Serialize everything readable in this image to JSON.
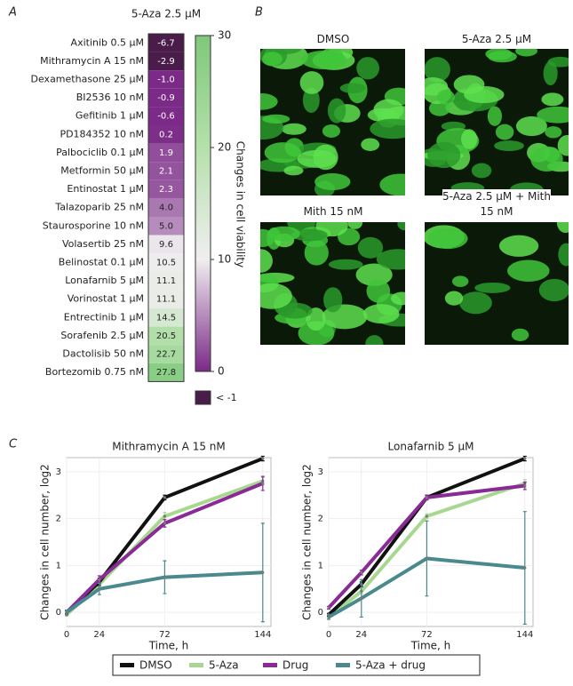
{
  "panel_labels": [
    "A",
    "B",
    "C"
  ],
  "images": {
    "titles": [
      "DMSO",
      "5-Aza 2.5 μM",
      "Mith 15 nM",
      "5-Aza 2.5 μM + Mith 15 nM"
    ]
  },
  "chart_data": [
    {
      "type": "heatmap",
      "columns": [
        "5-Aza 2.5 μM"
      ],
      "categories": [
        "Axitinib 0.5 μM",
        "Mithramycin A 15 nM",
        "Dexamethasone 25 μM",
        "BI2536 10 nM",
        "Gefitinib 1 μM",
        "PD184352 10 nM",
        "Palbociclib 0.1 μM",
        "Metformin 50 μM",
        "Entinostat 1 μM",
        "Talazoparib 25 nM",
        "Staurosporine 10 nM",
        "Volasertib 25 nM",
        "Belinostat 0.1 μM",
        "Lonafarnib 5 μM",
        "Vorinostat 1 μM",
        "Entrectinib 1 μM",
        "Sorafenib 2.5 μM",
        "Dactolisib 50 nM",
        "Bortezomib 0.75 nM"
      ],
      "values": [
        -6.7,
        -2.9,
        -1.0,
        -0.9,
        -0.6,
        0.2,
        1.9,
        2.1,
        2.3,
        4.0,
        5.0,
        9.6,
        10.5,
        11.1,
        11.1,
        14.5,
        20.5,
        22.7,
        27.8
      ],
      "value_labels": [
        "-6.7",
        "-2.9",
        "-1.0",
        "-0.9",
        "-0.6",
        "0.2",
        "1.9",
        "2.1",
        "2.3",
        "4.0",
        "5.0",
        "9.6",
        "10.5",
        "11.1",
        "11.1",
        "14.5",
        "20.5",
        "22.7",
        "27.8"
      ],
      "clim": [
        0,
        30
      ],
      "cticks": [
        0,
        10,
        20,
        30
      ],
      "colormap": [
        "#7b2a87",
        "#f0eef0",
        "#b5e0ab",
        "#7ec87a"
      ],
      "below_color": "#4a1c4a",
      "below_label": "< -1",
      "colorbar_label": "Changes in cell viability"
    },
    {
      "type": "line",
      "x": [
        0,
        24,
        72,
        144
      ],
      "xlim": [
        0,
        150
      ],
      "xticks": [
        0,
        24,
        72,
        144
      ],
      "ylim": [
        -0.3,
        3.3
      ],
      "yticks": [
        0,
        1,
        2,
        3
      ],
      "xlabel": "Time, h",
      "ylabel": "Changes in cell number, log2",
      "grid": true,
      "series": [
        {
          "name": "DMSO",
          "color": "#111111"
        },
        {
          "name": "5-Aza",
          "color": "#a8d890"
        },
        {
          "name": "Drug",
          "color": "#8a2a96"
        },
        {
          "name": "5-Aza + drug",
          "color": "#4a8a8e"
        }
      ],
      "panels": [
        {
          "title": "Mithramycin A 15 nM",
          "values": [
            [
              0,
              0.65,
              2.45,
              3.28
            ],
            [
              -0.05,
              0.6,
              2.05,
              2.8
            ],
            [
              0.0,
              0.7,
              1.9,
              2.75
            ],
            [
              0.0,
              0.5,
              0.75,
              0.85
            ]
          ],
          "errors": [
            [
              0.03,
              0.08,
              0.05,
              0.05
            ],
            [
              0.03,
              0.08,
              0.08,
              0.08
            ],
            [
              0.03,
              0.08,
              0.08,
              0.15
            ],
            [
              0.05,
              0.12,
              0.35,
              1.05
            ]
          ]
        },
        {
          "title": "Lonafarnib 5 μM",
          "values": [
            [
              -0.05,
              0.6,
              2.45,
              3.28
            ],
            [
              -0.1,
              0.45,
              2.05,
              2.75
            ],
            [
              0.1,
              0.85,
              2.45,
              2.7
            ],
            [
              -0.1,
              0.3,
              1.15,
              0.95
            ]
          ],
          "errors": [
            [
              0.03,
              0.05,
              0.05,
              0.05
            ],
            [
              0.03,
              0.05,
              0.05,
              0.08
            ],
            [
              0.03,
              0.05,
              0.05,
              0.08
            ],
            [
              0.05,
              0.4,
              0.8,
              1.2
            ]
          ]
        }
      ]
    }
  ]
}
